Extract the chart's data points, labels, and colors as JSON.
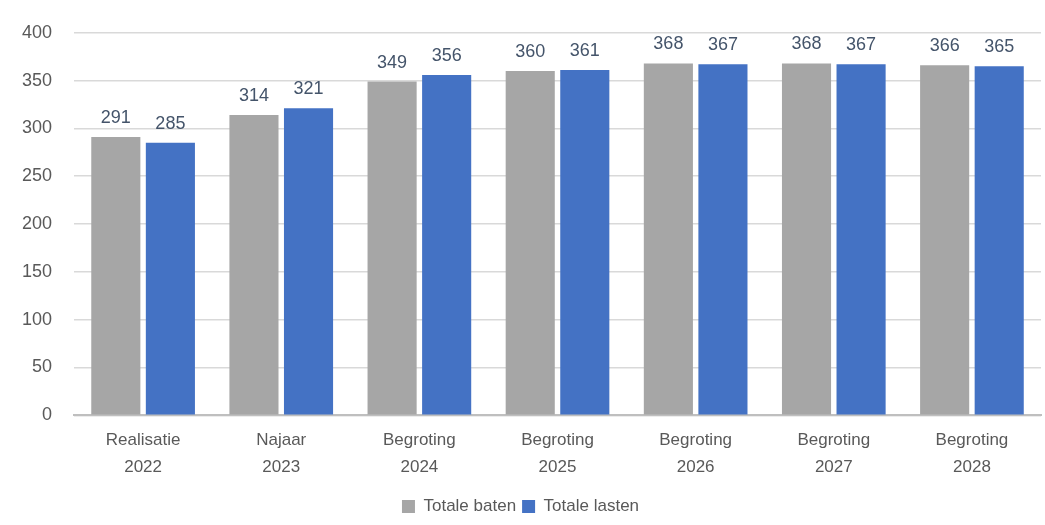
{
  "chart_data": {
    "type": "bar",
    "categories": [
      "Realisatie 2022",
      "Najaar 2023",
      "Begroting 2024",
      "Begroting 2025",
      "Begroting 2026",
      "Begroting 2027",
      "Begroting 2028"
    ],
    "series": [
      {
        "name": "Totale baten",
        "color": "#a6a6a6",
        "values": [
          291,
          314,
          349,
          360,
          368,
          368,
          366
        ]
      },
      {
        "name": "Totale lasten",
        "color": "#4472c4",
        "values": [
          285,
          321,
          356,
          361,
          367,
          367,
          365
        ]
      }
    ],
    "ylim": [
      0,
      400
    ],
    "yticks": [
      0,
      50,
      100,
      150,
      200,
      250,
      300,
      350,
      400
    ],
    "grid": "y",
    "legend": "bottom",
    "data_labels": true
  }
}
